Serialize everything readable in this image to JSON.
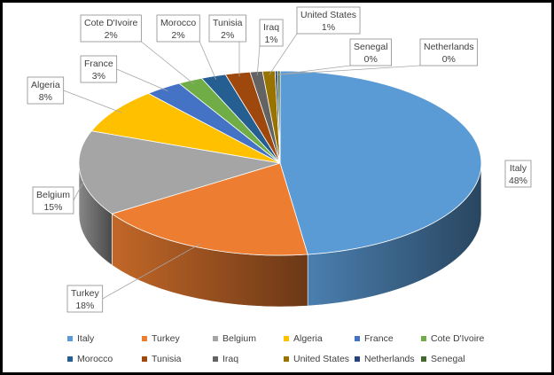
{
  "chart_data": {
    "type": "pie",
    "title": "",
    "legend_position": "bottom",
    "slices": [
      {
        "label": "Italy",
        "value": 48,
        "value_label": "48%",
        "color": "#5b9bd5"
      },
      {
        "label": "Turkey",
        "value": 18,
        "value_label": "18%",
        "color": "#ed7d31"
      },
      {
        "label": "Belgium",
        "value": 15,
        "value_label": "15%",
        "color": "#a5a5a5"
      },
      {
        "label": "Algeria",
        "value": 8,
        "value_label": "8%",
        "color": "#ffc000"
      },
      {
        "label": "France",
        "value": 3,
        "value_label": "3%",
        "color": "#4472c4"
      },
      {
        "label": "Cote D'Ivoire",
        "value": 2,
        "value_label": "2%",
        "color": "#70ad47"
      },
      {
        "label": "Morocco",
        "value": 2,
        "value_label": "2%",
        "color": "#255e91"
      },
      {
        "label": "Tunisia",
        "value": 2,
        "value_label": "2%",
        "color": "#9e480e"
      },
      {
        "label": "Iraq",
        "value": 1,
        "value_label": "1%",
        "color": "#636363"
      },
      {
        "label": "United States",
        "value": 1,
        "value_label": "1%",
        "color": "#997300"
      },
      {
        "label": "Netherlands",
        "value": 0.2,
        "value_label": "0%",
        "color": "#264478"
      },
      {
        "label": "Senegal",
        "value": 0.2,
        "value_label": "0%",
        "color": "#43682b"
      }
    ]
  }
}
